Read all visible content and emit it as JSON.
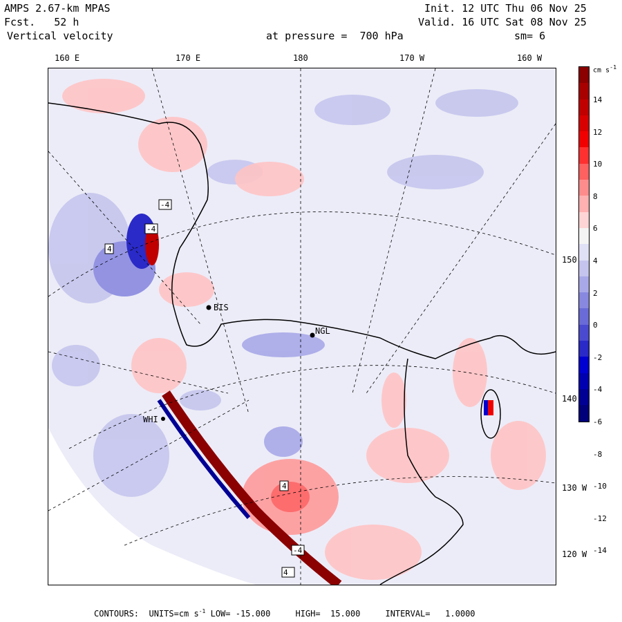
{
  "header": {
    "model": "AMPS 2.67-km MPAS",
    "forecast": "Fcst.   52 h",
    "field": "Vertical velocity",
    "pressure": "at pressure =  700 hPa",
    "init": "Init. 12 UTC Thu 06 Nov 25",
    "valid": "Valid. 16 UTC Sat 08 Nov 25",
    "smoothing": "sm= 6"
  },
  "longitude_labels": [
    "160 E",
    "170 E",
    "180",
    "170 W",
    "160 W"
  ],
  "latitude_labels": [
    "150 W",
    "140 W",
    "130 W",
    "120 W"
  ],
  "colorbar": {
    "units": "cm s",
    "units_exp": "-1",
    "tick_labels": [
      "14",
      "12",
      "10",
      "8",
      "6",
      "4",
      "2",
      "0",
      "-2",
      "-4",
      "-6",
      "-8",
      "-10",
      "-12",
      "-14"
    ],
    "colors": [
      "#8b0000",
      "#a80000",
      "#c00000",
      "#d80000",
      "#f00000",
      "#ff3030",
      "#ff6060",
      "#ff8c8c",
      "#ffb0b0",
      "#ffd4d4",
      "#f4f4f4",
      "#e0e0f6",
      "#c4c4ee",
      "#a8a8e8",
      "#8888e0",
      "#6a6ad8",
      "#4a4ad0",
      "#2a2ac8",
      "#0000d0",
      "#0000b0",
      "#000094",
      "#00007a"
    ]
  },
  "stations": [
    "BIS",
    "NGL",
    "WHI"
  ],
  "contour_labels": [
    "4",
    "4",
    "4",
    "-4",
    "-4",
    "-4"
  ],
  "footer": {
    "contours_label": "CONTOURS:",
    "units_label": "UNITS=cm s",
    "units_exp": "-1",
    "low": "LOW= -15.000",
    "high": "HIGH=  15.000",
    "interval": "INTERVAL=   1.0000"
  }
}
